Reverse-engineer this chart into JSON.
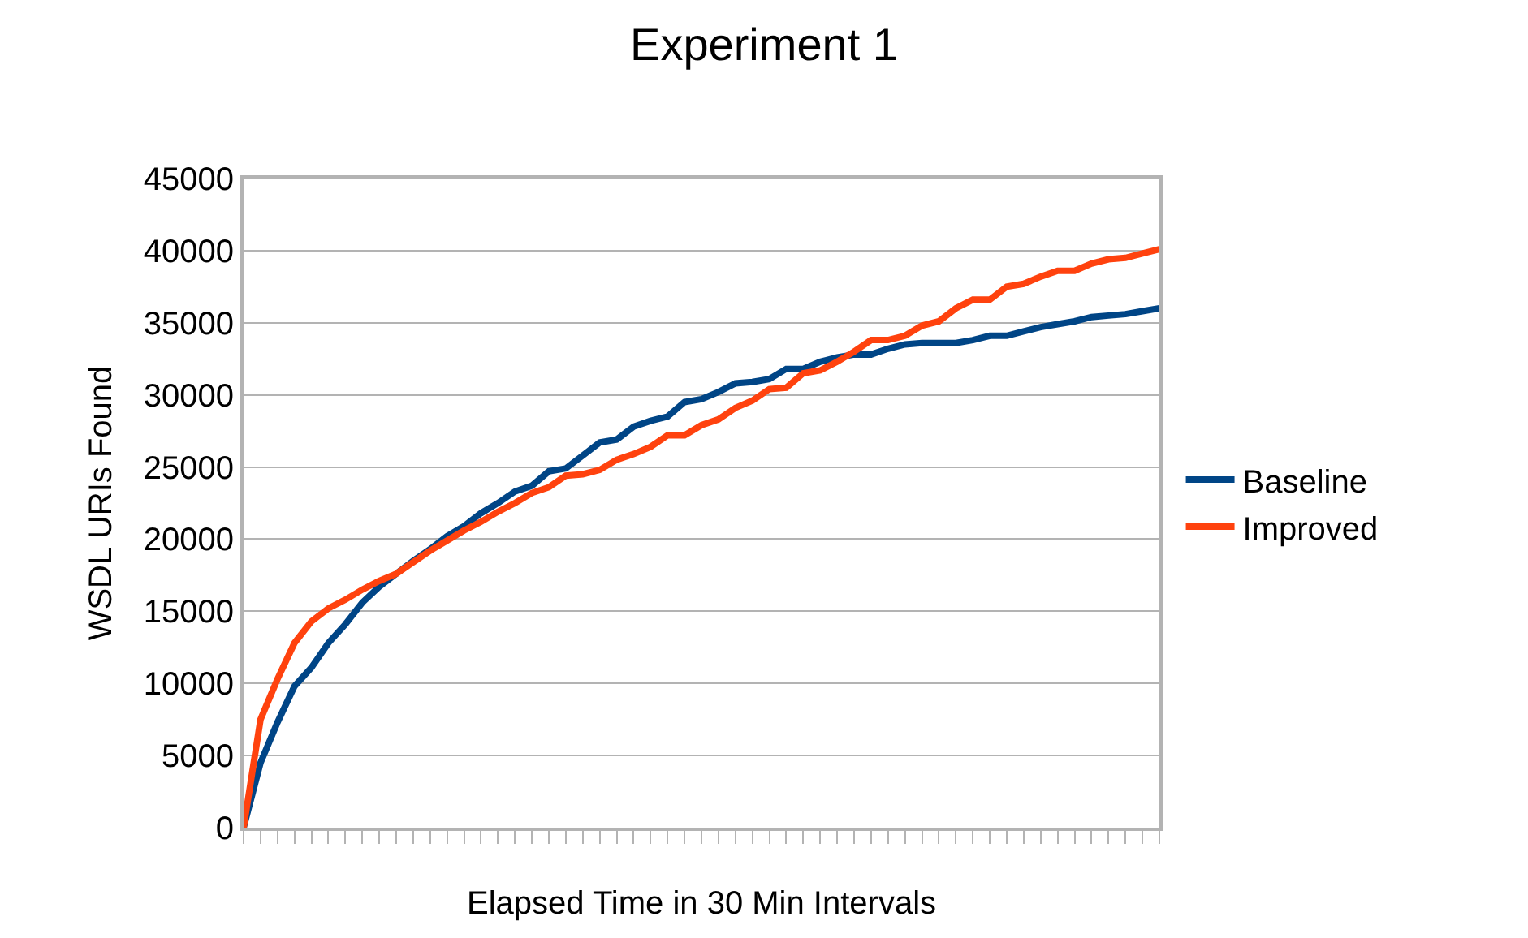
{
  "chart_data": {
    "type": "line",
    "title": "Experiment 1",
    "xlabel": "Elapsed Time in 30 Min Intervals",
    "ylabel": "WSDL URIs Found",
    "categories": [
      null,
      null,
      null,
      null,
      null,
      null,
      null,
      null,
      null,
      null,
      null,
      null,
      null,
      null,
      null,
      null,
      null,
      null,
      null,
      null,
      null,
      null,
      null,
      null,
      null,
      null,
      null,
      null,
      null,
      null,
      null,
      null,
      null,
      null,
      null,
      null,
      null,
      null,
      null,
      null,
      null,
      null,
      null,
      null,
      null,
      null,
      null,
      null,
      null,
      null,
      null,
      null,
      null,
      null,
      null
    ],
    "series": [
      {
        "name": "Baseline",
        "color": "#004586",
        "values": [
          0,
          4500,
          7300,
          9800,
          11100,
          12800,
          14100,
          15600,
          16700,
          17600,
          18500,
          19300,
          20200,
          20900,
          21800,
          22500,
          23300,
          23700,
          24700,
          24900,
          25800,
          26700,
          26900,
          27800,
          28200,
          28500,
          29500,
          29700,
          30200,
          30800,
          30900,
          31100,
          31800,
          31800,
          32300,
          32600,
          32800,
          32800,
          33200,
          33500,
          33600,
          33600,
          33600,
          33800,
          34100,
          34100,
          34400,
          34700,
          34900,
          35100,
          35400,
          35500,
          35600,
          35800,
          36000
        ]
      },
      {
        "name": "Improved",
        "color": "#ff420e",
        "values": [
          0,
          7500,
          10300,
          12800,
          14300,
          15200,
          15800,
          16500,
          17100,
          17600,
          18400,
          19200,
          19900,
          20600,
          21200,
          21900,
          22500,
          23200,
          23600,
          24400,
          24500,
          24800,
          25500,
          25900,
          26400,
          27200,
          27200,
          27900,
          28300,
          29100,
          29600,
          30400,
          30500,
          31500,
          31700,
          32300,
          33000,
          33800,
          33800,
          34100,
          34800,
          35100,
          36000,
          36600,
          36600,
          37500,
          37700,
          38200,
          38600,
          38600,
          39100,
          39400,
          39500,
          39800,
          40100
        ]
      }
    ],
    "ylim": [
      0,
      45000
    ],
    "yticks": [
      0,
      5000,
      10000,
      15000,
      20000,
      25000,
      30000,
      35000,
      40000,
      45000
    ],
    "grid": "y",
    "legend": "right",
    "tick_labels": "y",
    "marker": "none",
    "line_style": "solid"
  }
}
